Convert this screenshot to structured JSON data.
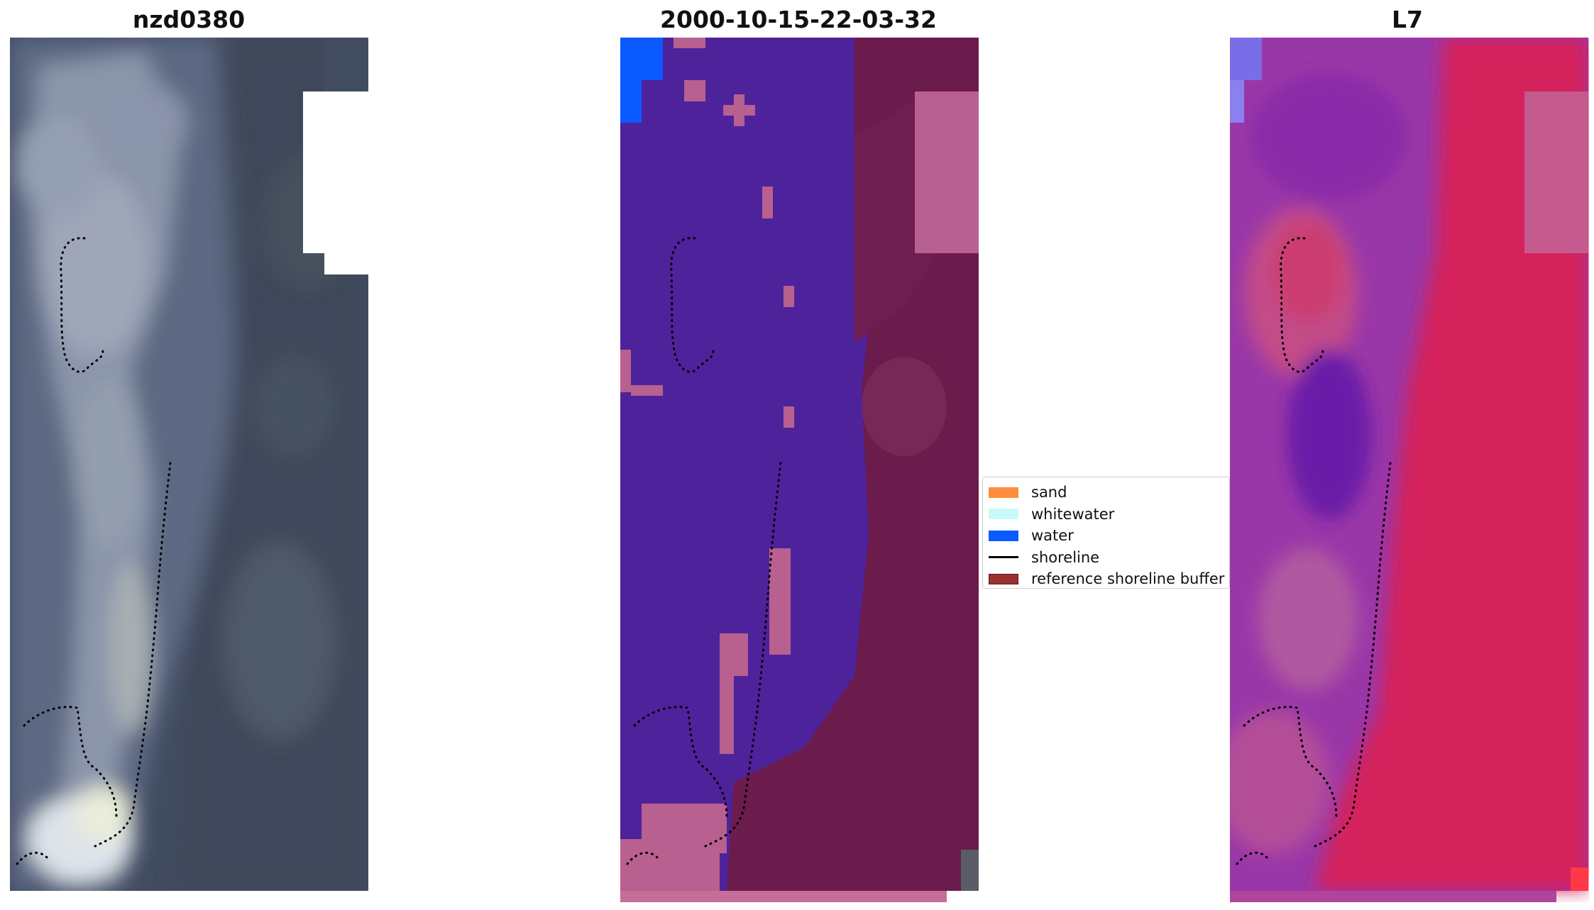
{
  "panels": [
    {
      "id": "rgb",
      "title": "nzd0380"
    },
    {
      "id": "classified",
      "title": "2000-10-15-22-03-32"
    },
    {
      "id": "index",
      "title": "L7"
    }
  ],
  "legend": {
    "items": [
      {
        "label": "sand",
        "color": "#ff8c3c",
        "kind": "patch"
      },
      {
        "label": "whitewater",
        "color": "#c8fafa",
        "kind": "patch"
      },
      {
        "label": "water",
        "color": "#0a5aff",
        "kind": "patch"
      },
      {
        "label": "shoreline",
        "color": "#000000",
        "kind": "line"
      },
      {
        "label": "reference shoreline buffer",
        "color": "#9b3030",
        "kind": "patch"
      }
    ]
  },
  "colors": {
    "rgb_base": "#3f4a5e",
    "rgb_bright": "#a8b0c0",
    "classified_water": "#4a209a",
    "classified_buffer": "#6a1a4a",
    "classified_pink": "#b8608f",
    "classified_bluewater": "#0a5aff",
    "index_purple": "#8a30b0",
    "index_red": "#d0205a",
    "index_pink": "#c86090"
  }
}
